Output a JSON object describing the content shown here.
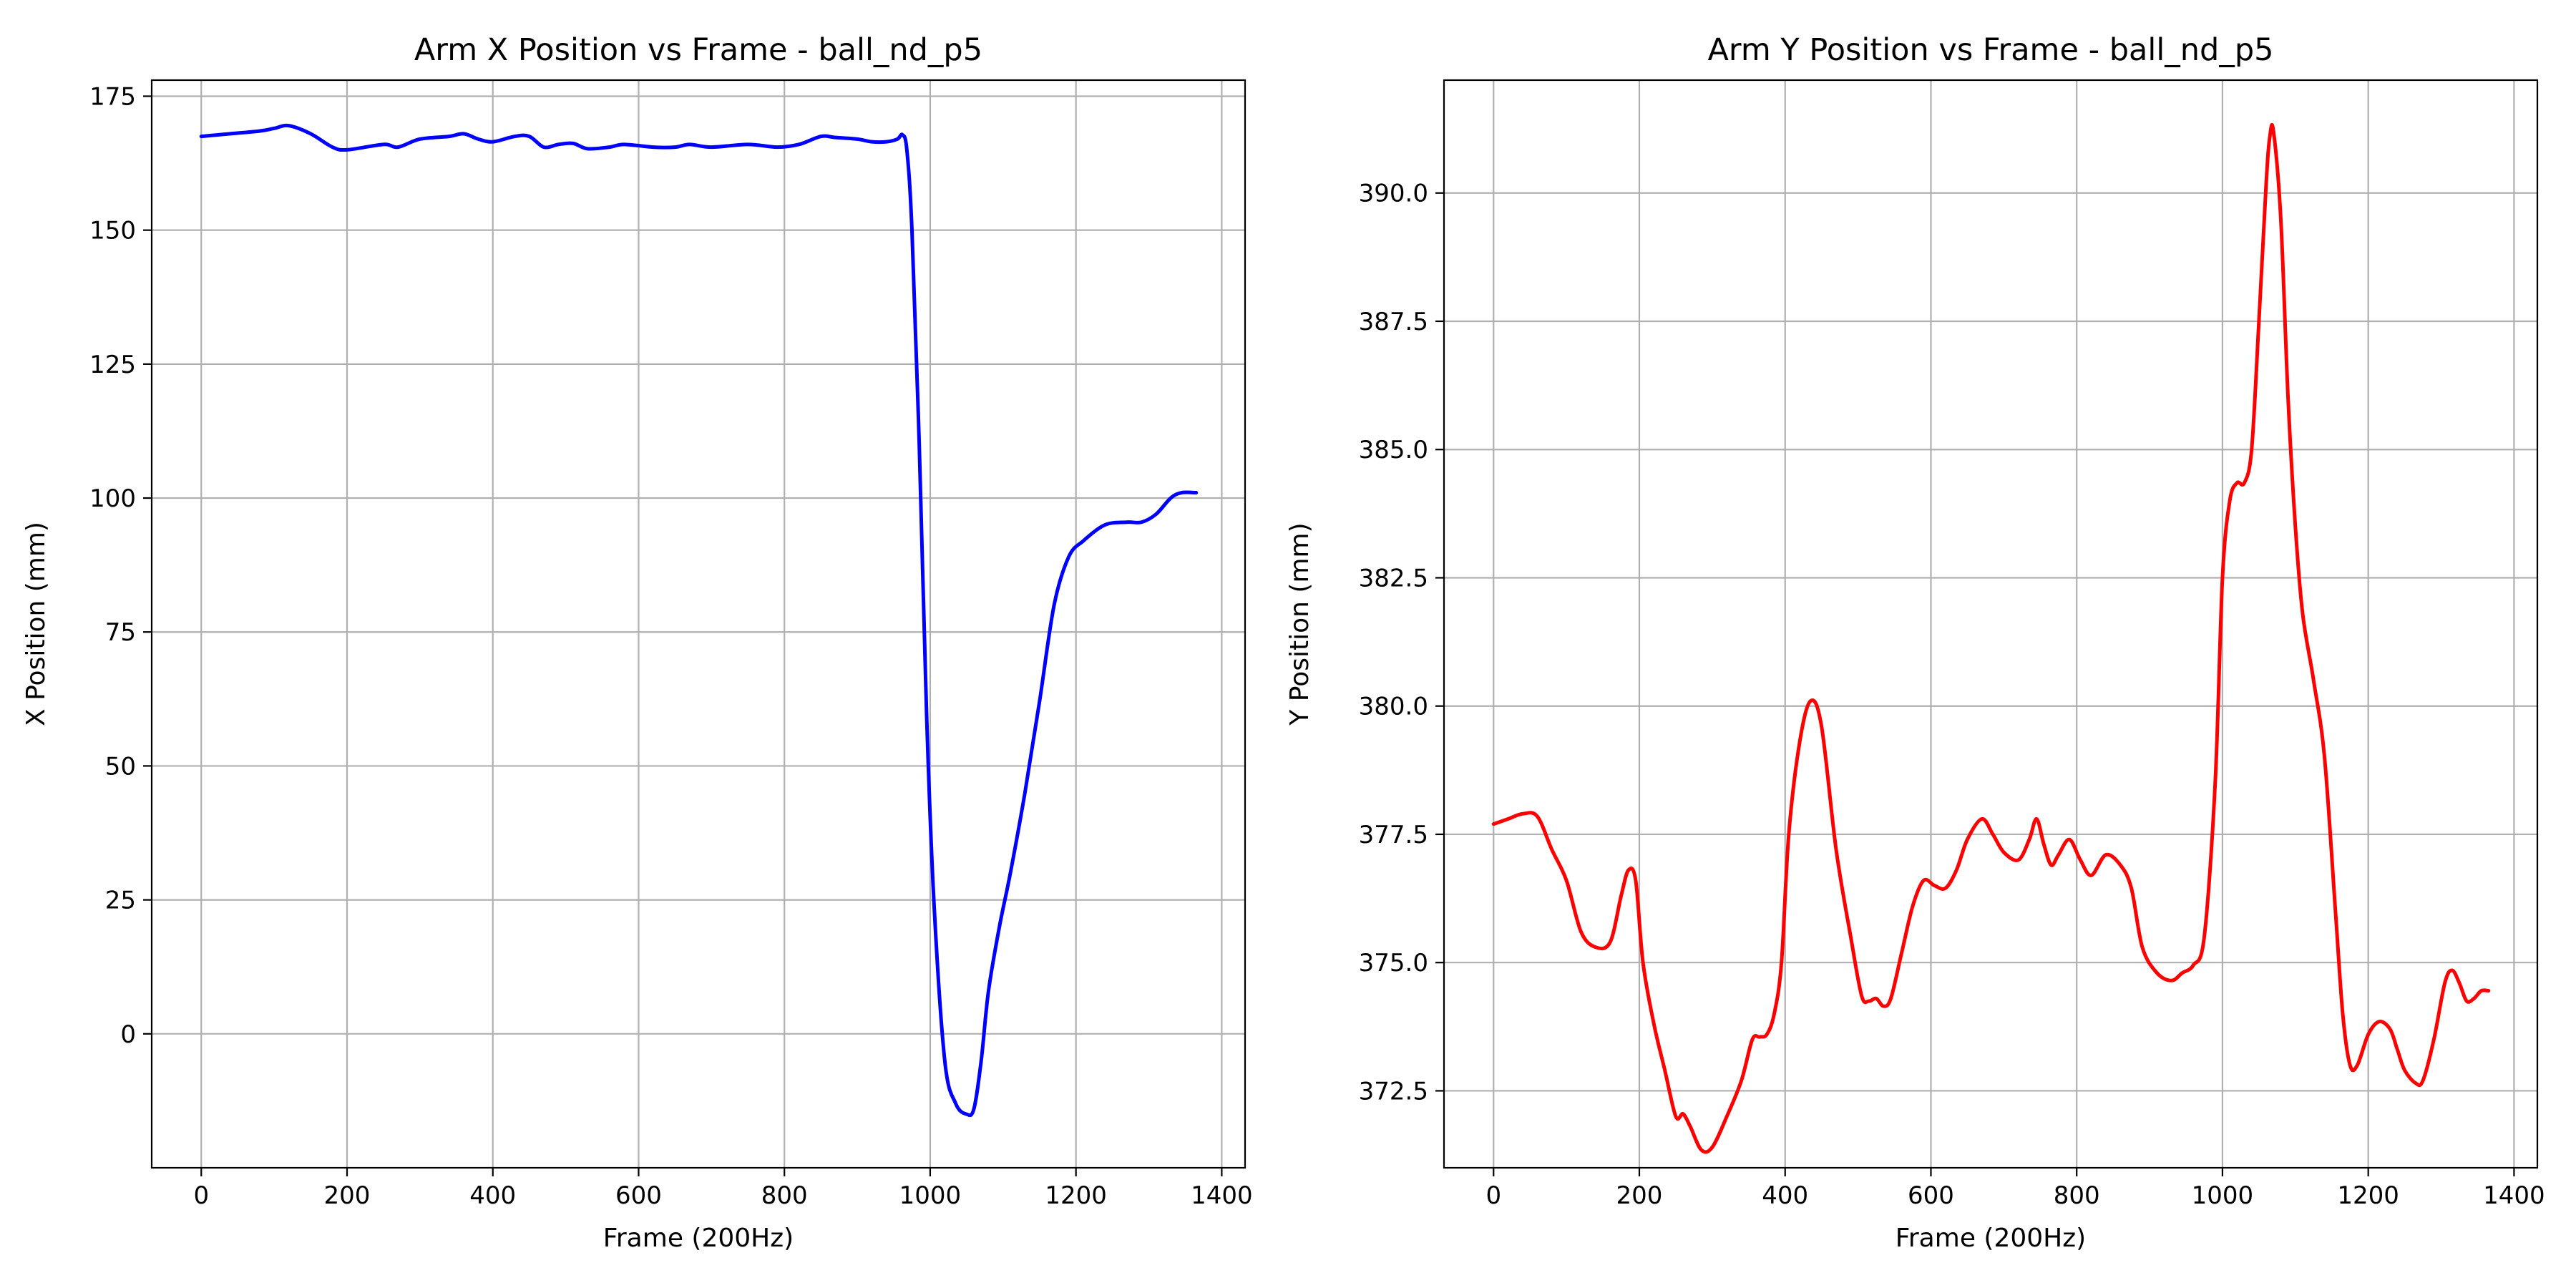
{
  "chart_data": [
    {
      "type": "line",
      "title": "Arm X Position vs Frame - ball_nd_p5",
      "xlabel": "Frame (200Hz)",
      "ylabel": "X Position (mm)",
      "xlim": [
        -68,
        1432
      ],
      "ylim": [
        -25,
        178
      ],
      "xticks": [
        0,
        200,
        400,
        600,
        800,
        1000,
        1200,
        1400
      ],
      "yticks": [
        0,
        25,
        50,
        75,
        100,
        125,
        150,
        175
      ],
      "ytick_labels": [
        "0",
        "25",
        "50",
        "75",
        "100",
        "125",
        "150",
        "175"
      ],
      "grid": true,
      "series": [
        {
          "color": "#0000ff",
          "x": [
            0,
            40,
            80,
            100,
            120,
            150,
            180,
            200,
            250,
            270,
            300,
            340,
            360,
            380,
            400,
            430,
            450,
            470,
            490,
            510,
            530,
            560,
            580,
            620,
            650,
            670,
            700,
            750,
            790,
            820,
            850,
            870,
            900,
            920,
            940,
            955,
            962,
            968,
            975,
            985,
            995,
            1005,
            1020,
            1035,
            1050,
            1060,
            1070,
            1080,
            1095,
            1110,
            1130,
            1150,
            1170,
            1190,
            1210,
            1240,
            1270,
            1290,
            1310,
            1330,
            1345,
            1365
          ],
          "y": [
            167.5,
            168,
            168.5,
            169,
            169.5,
            168,
            165.5,
            165,
            166,
            165.5,
            167,
            167.5,
            168,
            167,
            166.5,
            167.5,
            167.5,
            165.5,
            166,
            166.2,
            165.2,
            165.5,
            166,
            165.5,
            165.5,
            166,
            165.5,
            166,
            165.5,
            166,
            167.5,
            167.3,
            167,
            166.5,
            166.5,
            167,
            167.8,
            165,
            150,
            110,
            60,
            25,
            -5,
            -13,
            -15,
            -14,
            -5,
            8,
            20,
            30,
            45,
            62,
            80,
            89,
            92,
            95,
            95.5,
            95.5,
            97,
            100,
            101,
            101
          ]
        }
      ]
    },
    {
      "type": "line",
      "title": "Arm Y Position vs Frame - ball_nd_p5",
      "xlabel": "Frame (200Hz)",
      "ylabel": "Y Position (mm)",
      "xlim": [
        -68,
        1432
      ],
      "ylim": [
        371.0,
        392.2
      ],
      "xticks": [
        0,
        200,
        400,
        600,
        800,
        1000,
        1200,
        1400
      ],
      "yticks": [
        372.5,
        375.0,
        377.5,
        380.0,
        382.5,
        385.0,
        387.5,
        390.0
      ],
      "ytick_labels": [
        "372.5",
        "375.0",
        "377.5",
        "380.0",
        "382.5",
        "385.0",
        "387.5",
        "390.0"
      ],
      "grid": true,
      "series": [
        {
          "color": "#ff0000",
          "x": [
            0,
            20,
            40,
            60,
            80,
            100,
            120,
            140,
            160,
            175,
            185,
            195,
            205,
            220,
            235,
            250,
            260,
            270,
            285,
            300,
            320,
            340,
            355,
            365,
            375,
            385,
            395,
            405,
            420,
            435,
            450,
            470,
            490,
            505,
            515,
            525,
            535,
            545,
            560,
            575,
            590,
            605,
            620,
            635,
            650,
            670,
            685,
            700,
            720,
            735,
            745,
            755,
            765,
            775,
            790,
            805,
            820,
            840,
            860,
            875,
            890,
            910,
            930,
            945,
            960,
            975,
            990,
            1000,
            1010,
            1020,
            1030,
            1040,
            1050,
            1060,
            1065,
            1070,
            1080,
            1090,
            1100,
            1110,
            1125,
            1140,
            1155,
            1165,
            1175,
            1185,
            1200,
            1215,
            1230,
            1240,
            1250,
            1265,
            1275,
            1290,
            1305,
            1315,
            1325,
            1335,
            1345,
            1355,
            1365
          ],
          "y": [
            377.7,
            377.8,
            377.9,
            377.85,
            377.2,
            376.6,
            375.6,
            375.3,
            375.4,
            376.3,
            376.8,
            376.6,
            375.0,
            373.8,
            372.9,
            372.0,
            372.05,
            371.8,
            371.35,
            371.4,
            372.0,
            372.7,
            373.5,
            373.55,
            373.6,
            374.0,
            375.0,
            377.5,
            379.3,
            380.1,
            379.6,
            377.2,
            375.5,
            374.35,
            374.25,
            374.3,
            374.15,
            374.3,
            375.2,
            376.1,
            376.6,
            376.5,
            376.45,
            376.8,
            377.4,
            377.8,
            377.5,
            377.15,
            377.0,
            377.4,
            377.8,
            377.3,
            376.9,
            377.1,
            377.4,
            377.0,
            376.7,
            377.1,
            376.9,
            376.45,
            375.3,
            374.8,
            374.65,
            374.8,
            374.95,
            375.5,
            378.5,
            382.5,
            384.0,
            384.35,
            384.35,
            385.0,
            387.5,
            390.2,
            391.1,
            391.2,
            389.5,
            386.0,
            383.5,
            381.8,
            380.5,
            379.0,
            376.0,
            374.0,
            373.0,
            373.0,
            373.6,
            373.85,
            373.7,
            373.3,
            372.9,
            372.65,
            372.7,
            373.5,
            374.6,
            374.85,
            374.6,
            374.25,
            374.3,
            374.45,
            374.45
          ]
        }
      ]
    }
  ]
}
